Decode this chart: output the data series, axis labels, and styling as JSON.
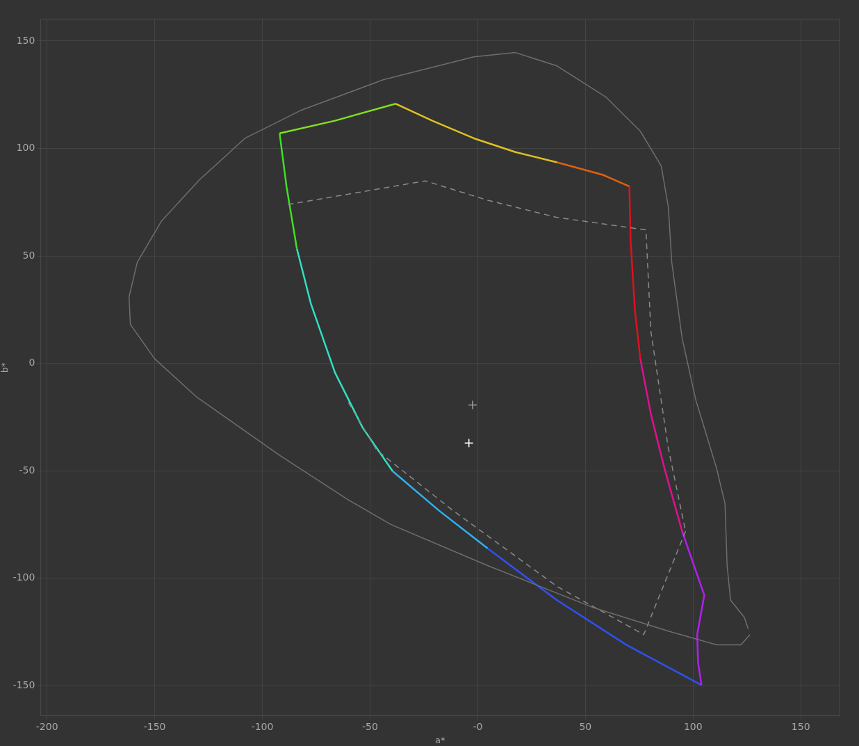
{
  "chart_data": {
    "type": "line",
    "xlabel": "a*",
    "ylabel": "b*",
    "xlim": [
      -203,
      168
    ],
    "ylim": [
      -164,
      160
    ],
    "xticks": [
      -200,
      -150,
      -100,
      -50,
      {
        "value": 0,
        "label": "-0"
      },
      50,
      100,
      150
    ],
    "yticks": [
      -150,
      -100,
      -50,
      0,
      50,
      100,
      150
    ],
    "grid": true,
    "legend": false,
    "marker": "none",
    "series": [
      {
        "color": "#6e6e6e",
        "line_style": "solid",
        "x": [
          126.4,
          122.2,
          111,
          88.5,
          53,
          4.6,
          -40.5,
          -59.8,
          -92,
          -130.7,
          -150,
          -161.3,
          -161.9,
          -158.1,
          -146.8,
          -129.1,
          -108.1,
          -82.4,
          -43.7,
          -1.8,
          17.5,
          36.8,
          59.4,
          75.5,
          85.2,
          88.5,
          90.1,
          94.9,
          101.3,
          111,
          114.8,
          115.8,
          117.4,
          123.8,
          125.6
        ],
        "values": [
          -126.2,
          -131,
          -131,
          -124.6,
          -113.4,
          -94.1,
          -74.9,
          -63.7,
          -42.8,
          -15.5,
          2.1,
          18.1,
          31,
          47,
          66.3,
          85.5,
          104.7,
          117.6,
          132,
          142.6,
          144.6,
          138.4,
          124,
          108,
          91.9,
          72.7,
          47,
          11.7,
          -17.2,
          -49.2,
          -65.2,
          -94.1,
          -110.2,
          -118.2,
          -123.5
        ]
      },
      {
        "color": "#8a8a8a",
        "line_style": "dashed",
        "x": [
          -88.1,
          -24.4,
          4.6,
          36.8,
          78.1,
          80.4,
          88.5,
          96.5
        ],
        "values": [
          73.9,
          84.9,
          75.9,
          67.9,
          62.1,
          14.9,
          -39.6,
          -78.1
        ]
      },
      {
        "color": "#8a8a8a",
        "line_style": "dashed",
        "x": [
          96.5,
          77.1,
          36.8,
          -11.5,
          -46.9,
          -60.5
        ],
        "values": [
          -78.1,
          -126.2,
          -103.8,
          -68.5,
          -40.4,
          -17.5
        ]
      },
      {
        "color": "#80e020",
        "x": [
          -92,
          -66.3,
          -38.2
        ],
        "values": [
          107,
          112.9,
          120.8
        ]
      },
      {
        "color": "#e0c020",
        "x": [
          -38.2,
          -21.1,
          -1.8,
          17.5,
          36.8
        ],
        "values": [
          120.8,
          112.9,
          104.7,
          98.3,
          93.5
        ]
      },
      {
        "color": "#e06010",
        "x": [
          36.8,
          58.1,
          70.4
        ],
        "values": [
          93.5,
          87.7,
          82.3
        ]
      },
      {
        "color": "#e01020",
        "x": [
          70.4,
          71,
          73,
          75.5
        ],
        "values": [
          82.3,
          56.6,
          24.5,
          2.1
        ]
      },
      {
        "color": "#e01090",
        "x": [
          75.5,
          80.4,
          86.8,
          94.9
        ],
        "values": [
          2.1,
          -23.6,
          -49.2,
          -78.1
        ]
      },
      {
        "color": "#b020f0",
        "x": [
          94.9,
          105.2,
          101.9,
          102.3,
          103.9
        ],
        "values": [
          -78.1,
          -107.9,
          -126.2,
          -139.1,
          -149.7
        ]
      },
      {
        "color": "#3050f0",
        "x": [
          103.9,
          69.1,
          36.8,
          4.6
        ],
        "values": [
          -149.7,
          -131,
          -110.2,
          -86.1
        ]
      },
      {
        "color": "#30b0f0",
        "x": [
          4.6,
          -18,
          -39.5
        ],
        "values": [
          -86.1,
          -68.5,
          -50.2
        ]
      },
      {
        "color": "#30e0c0",
        "x": [
          -39.5,
          -53.4,
          -66.3,
          -77.5,
          -84
        ],
        "values": [
          -50.2,
          -30,
          -4.3,
          27.8,
          53.4
        ]
      },
      {
        "color": "#40e020",
        "x": [
          -84,
          -88.8,
          -92
        ],
        "values": [
          53.4,
          82.3,
          107
        ]
      },
      {
        "type": "scatter",
        "color": "#a0a0a0",
        "marker": "cross",
        "x": [
          -2.4
        ],
        "values": [
          -19.4
        ]
      },
      {
        "type": "scatter",
        "color": "#ffffff",
        "marker": "cross",
        "x": [
          -4.1
        ],
        "values": [
          -37.1
        ]
      }
    ]
  }
}
